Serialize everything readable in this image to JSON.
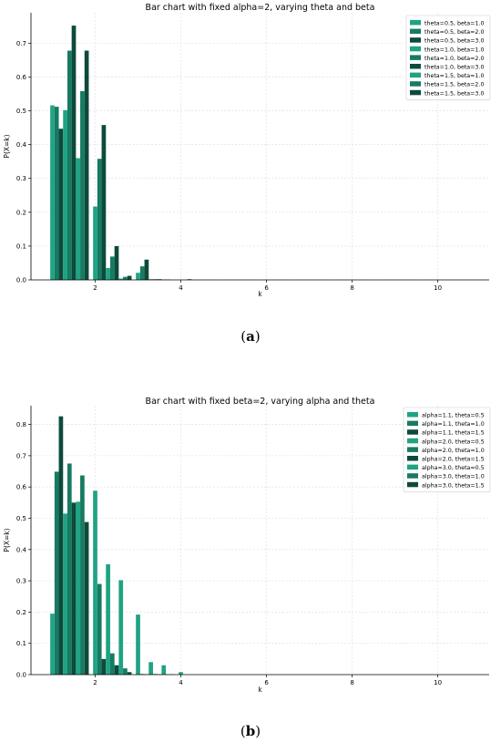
{
  "colors": {
    "c1": "#1fa383",
    "c2": "#177a62",
    "c3": "#0e4a3b",
    "grid": "#dcdcdc",
    "axis": "#000000",
    "legend_border": "#cccccc"
  },
  "captions": {
    "a_paren_open": "(",
    "a_letter": "a",
    "a_paren_close": ")",
    "b_paren_open": "(",
    "b_letter": "b",
    "b_paren_close": ")"
  },
  "chart_data": [
    {
      "type": "bar",
      "title": "Bar chart with fixed alpha=2, varying theta and beta",
      "xlabel": "k",
      "ylabel": "P(X=k)",
      "xlim": [
        0.5,
        11.2
      ],
      "ylim": [
        0,
        0.79
      ],
      "xticks": [
        2,
        4,
        6,
        8,
        10
      ],
      "yticks": [
        0.0,
        0.1,
        0.2,
        0.3,
        0.4,
        0.5,
        0.6,
        0.7
      ],
      "grid": true,
      "legend_position": "top-right",
      "bar_width": 0.1,
      "series": [
        {
          "name": "theta=0.5, beta=1.0",
          "color": "#1fa383",
          "x": [
            1.0,
            2.0,
            3.0
          ],
          "values": [
            0.516,
            0.217,
            0.021
          ]
        },
        {
          "name": "theta=0.5, beta=2.0",
          "color": "#177a62",
          "x": [
            1.1,
            2.1,
            3.1
          ],
          "values": [
            0.512,
            0.358,
            0.04
          ]
        },
        {
          "name": "theta=0.5, beta=3.0",
          "color": "#0e4a3b",
          "x": [
            1.2,
            2.2,
            3.2
          ],
          "values": [
            0.447,
            0.458,
            0.06
          ]
        },
        {
          "name": "theta=1.0, beta=1.0",
          "color": "#1fa383",
          "x": [
            1.3,
            2.3,
            3.3
          ],
          "values": [
            0.502,
            0.035,
            0.002
          ]
        },
        {
          "name": "theta=1.0, beta=2.0",
          "color": "#177a62",
          "x": [
            1.4,
            2.4,
            3.4
          ],
          "values": [
            0.678,
            0.069,
            0.002
          ]
        },
        {
          "name": "theta=1.0, beta=3.0",
          "color": "#0e4a3b",
          "x": [
            1.5,
            2.5,
            3.5
          ],
          "values": [
            0.752,
            0.1,
            0.002
          ]
        },
        {
          "name": "theta=1.5, beta=1.0",
          "color": "#1fa383",
          "x": [
            1.6,
            2.6,
            3.6
          ],
          "values": [
            0.36,
            0.004,
            0.001
          ]
        },
        {
          "name": "theta=1.5, beta=2.0",
          "color": "#177a62",
          "x": [
            1.7,
            2.7,
            3.7
          ],
          "values": [
            0.558,
            0.009,
            0.001
          ]
        },
        {
          "name": "theta=1.5, beta=3.0",
          "color": "#0e4a3b",
          "x": [
            1.8,
            2.8,
            4.2
          ],
          "values": [
            0.678,
            0.012,
            0.002
          ]
        }
      ]
    },
    {
      "type": "bar",
      "title": "Bar chart with fixed beta=2, varying alpha and theta",
      "xlabel": "k",
      "ylabel": "P(X=k)",
      "xlim": [
        0.5,
        11.2
      ],
      "ylim": [
        0,
        0.86
      ],
      "xticks": [
        2,
        4,
        6,
        8,
        10
      ],
      "yticks": [
        0.0,
        0.1,
        0.2,
        0.3,
        0.4,
        0.5,
        0.6,
        0.7,
        0.8
      ],
      "grid": true,
      "legend_position": "top-right",
      "bar_width": 0.1,
      "series": [
        {
          "name": "alpha=1.1, theta=0.5",
          "color": "#1fa383",
          "x": [
            1.0,
            2.0,
            3.0,
            4.0
          ],
          "values": [
            0.195,
            0.588,
            0.192,
            0.008
          ]
        },
        {
          "name": "alpha=1.1, theta=1.0",
          "color": "#177a62",
          "x": [
            1.1,
            2.1,
            3.1
          ],
          "values": [
            0.649,
            0.29,
            0.002
          ]
        },
        {
          "name": "alpha=1.1, theta=1.5",
          "color": "#0e4a3b",
          "x": [
            1.2,
            2.2,
            3.2
          ],
          "values": [
            0.826,
            0.05,
            0.001
          ]
        },
        {
          "name": "alpha=2.0, theta=0.5",
          "color": "#1fa383",
          "x": [
            1.3,
            2.3,
            3.3
          ],
          "values": [
            0.515,
            0.353,
            0.04
          ]
        },
        {
          "name": "alpha=2.0, theta=1.0",
          "color": "#177a62",
          "x": [
            1.4,
            2.4,
            3.4
          ],
          "values": [
            0.675,
            0.068,
            0.002
          ]
        },
        {
          "name": "alpha=2.0, theta=1.5",
          "color": "#0e4a3b",
          "x": [
            1.5,
            2.5,
            3.5
          ],
          "values": [
            0.55,
            0.03,
            0.001
          ]
        },
        {
          "name": "alpha=3.0, theta=0.5",
          "color": "#1fa383",
          "x": [
            1.6,
            2.6,
            3.6
          ],
          "values": [
            0.553,
            0.302,
            0.03
          ]
        },
        {
          "name": "alpha=3.0, theta=1.0",
          "color": "#177a62",
          "x": [
            1.7,
            2.7,
            3.7
          ],
          "values": [
            0.637,
            0.02,
            0.001
          ]
        },
        {
          "name": "alpha=3.0, theta=1.5",
          "color": "#0e4a3b",
          "x": [
            1.8,
            2.8,
            3.8
          ],
          "values": [
            0.488,
            0.008,
            0.001
          ]
        }
      ]
    }
  ]
}
